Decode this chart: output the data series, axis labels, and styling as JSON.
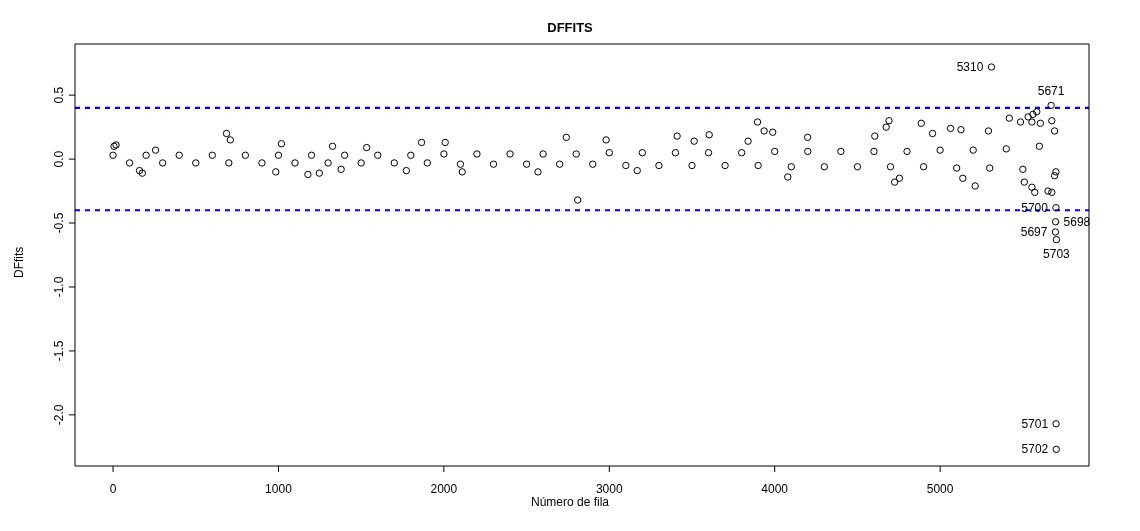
{
  "chart_data": {
    "type": "scatter",
    "title": "DFFITS",
    "xlabel": "Número de fila",
    "ylabel": "DFfits",
    "marker": "circle",
    "xlim": [
      -230,
      5900
    ],
    "xticks": [
      0,
      1000,
      2000,
      3000,
      4000,
      5000
    ],
    "ylim": [
      -2.4,
      0.9
    ],
    "yticks": [
      {
        "value": -2,
        "label": "-2.0"
      },
      -1.5,
      {
        "value": -1,
        "label": "-1.0"
      },
      -0.5,
      {
        "value": 0,
        "label": "0.0"
      },
      0.5
    ],
    "ref_lines": [
      {
        "axis": "y",
        "value": 0.4,
        "color": "#0000ff",
        "line_style": "dashed"
      },
      {
        "axis": "y",
        "value": -0.4,
        "color": "#0000ff",
        "line_style": "dashed"
      }
    ],
    "annotations": [
      {
        "text": "5310",
        "x": 5310,
        "y": 0.72
      },
      {
        "text": "5671",
        "x": 5671,
        "y": 0.42
      },
      {
        "text": "5700",
        "x": 5700,
        "y": -0.38
      },
      {
        "text": "5698",
        "x": 5698,
        "y": -0.49
      },
      {
        "text": "5697",
        "x": 5697,
        "y": -0.57
      },
      {
        "text": "5703",
        "x": 5703,
        "y": -0.63
      },
      {
        "text": "5701",
        "x": 5701,
        "y": -2.07
      },
      {
        "text": "5702",
        "x": 5702,
        "y": -2.27
      }
    ],
    "series": [
      {
        "color": "#000000",
        "x": [
          6,
          18,
          160,
          177,
          257,
          686,
          709,
          984,
          1018,
          1178,
          1247,
          1327,
          1379,
          1533,
          1773,
          1865,
          2008,
          2111,
          2569,
          2740,
          2809,
          2981,
          3169,
          3410,
          3513,
          3604,
          3839,
          3896,
          3936,
          3988,
          4079,
          4199,
          4605,
          4674,
          4691,
          4725,
          4754,
          4886,
          4954,
          5063,
          5126,
          5137,
          5212,
          5292,
          5310,
          5418,
          5486,
          5509,
          5532,
          5555,
          5555,
          5561,
          5572,
          5584,
          5606,
          5652,
          5671,
          5675,
          5675,
          5692,
          5692,
          5697,
          5698,
          5700,
          5701,
          5702,
          5703,
          0,
          200,
          400,
          600,
          800,
          1000,
          1200,
          1400,
          1600,
          1800,
          2000,
          2200,
          2400,
          2600,
          2800,
          3000,
          3200,
          3400,
          3600,
          3800,
          4000,
          4200,
          4400,
          4600,
          4800,
          5000,
          5200,
          5400,
          5600,
          100,
          300,
          500,
          700,
          900,
          1100,
          1300,
          1500,
          1700,
          1900,
          2100,
          2300,
          2500,
          2700,
          2900,
          3100,
          3300,
          3500,
          3700,
          3900,
          4100,
          4300,
          4500,
          4700,
          4900,
          5100,
          5300,
          5500,
          5700
        ],
        "values": [
          0.1,
          0.11,
          -0.09,
          -0.11,
          0.07,
          0.2,
          0.15,
          -0.1,
          0.12,
          -0.12,
          -0.11,
          0.1,
          -0.08,
          0.09,
          -0.09,
          0.13,
          0.13,
          -0.1,
          -0.1,
          0.17,
          -0.32,
          0.15,
          -0.09,
          0.18,
          0.14,
          0.19,
          0.14,
          0.29,
          0.22,
          0.21,
          -0.14,
          0.17,
          0.18,
          0.25,
          0.3,
          -0.18,
          -0.15,
          0.28,
          0.2,
          0.24,
          0.23,
          -0.15,
          -0.21,
          0.22,
          0.72,
          0.32,
          0.29,
          -0.18,
          0.33,
          0.29,
          -0.22,
          0.35,
          -0.26,
          0.37,
          0.28,
          -0.25,
          0.42,
          0.3,
          -0.26,
          0.22,
          -0.13,
          -0.57,
          -0.49,
          -0.38,
          -2.07,
          -2.27,
          -0.63,
          0.03,
          0.03,
          0.03,
          0.03,
          0.03,
          0.03,
          0.03,
          0.03,
          0.03,
          0.03,
          0.04,
          0.04,
          0.04,
          0.04,
          0.04,
          0.05,
          0.05,
          0.05,
          0.05,
          0.05,
          0.06,
          0.06,
          0.06,
          0.06,
          0.06,
          0.07,
          0.07,
          0.08,
          0.1,
          -0.03,
          -0.03,
          -0.03,
          -0.03,
          -0.03,
          -0.03,
          -0.03,
          -0.03,
          -0.03,
          -0.03,
          -0.04,
          -0.04,
          -0.04,
          -0.04,
          -0.04,
          -0.05,
          -0.05,
          -0.05,
          -0.05,
          -0.05,
          -0.06,
          -0.06,
          -0.06,
          -0.06,
          -0.06,
          -0.07,
          -0.07,
          -0.08,
          -0.1
        ]
      }
    ]
  }
}
